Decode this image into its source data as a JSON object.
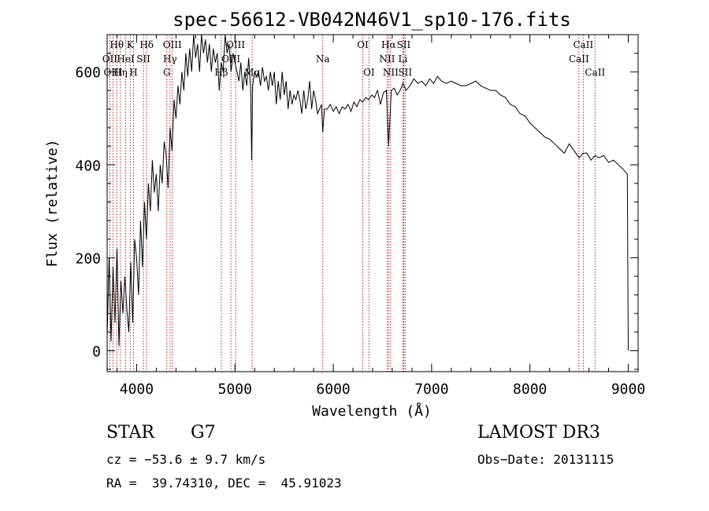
{
  "chart_data": {
    "type": "line",
    "title": "spec-56612-VB042N46V1_sp10-176.fits",
    "xlabel": "Wavelength (Å)",
    "ylabel": "Flux (relative)",
    "xlim": [
      3700,
      9100
    ],
    "ylim": [
      -45,
      680
    ],
    "xticks": [
      4000,
      5000,
      6000,
      7000,
      8000,
      9000
    ],
    "yticks": [
      0,
      200,
      400,
      600
    ],
    "grid": false,
    "line_color": "#000000",
    "marker_color": "#b22222",
    "spectrum": {
      "x": [
        3700,
        3720,
        3740,
        3760,
        3780,
        3800,
        3820,
        3840,
        3860,
        3880,
        3900,
        3920,
        3940,
        3960,
        3980,
        4000,
        4020,
        4040,
        4060,
        4080,
        4100,
        4120,
        4140,
        4160,
        4180,
        4200,
        4220,
        4240,
        4260,
        4280,
        4300,
        4320,
        4340,
        4360,
        4380,
        4400,
        4420,
        4440,
        4460,
        4480,
        4500,
        4520,
        4540,
        4560,
        4580,
        4600,
        4620,
        4640,
        4660,
        4680,
        4700,
        4720,
        4740,
        4760,
        4780,
        4800,
        4820,
        4840,
        4860,
        4880,
        4900,
        4920,
        4940,
        4960,
        4980,
        5000,
        5020,
        5040,
        5060,
        5080,
        5100,
        5120,
        5140,
        5160,
        5170,
        5180,
        5200,
        5220,
        5240,
        5260,
        5280,
        5300,
        5320,
        5340,
        5360,
        5380,
        5400,
        5420,
        5440,
        5460,
        5480,
        5500,
        5520,
        5540,
        5560,
        5580,
        5600,
        5620,
        5640,
        5660,
        5680,
        5700,
        5720,
        5740,
        5760,
        5780,
        5800,
        5820,
        5840,
        5860,
        5880,
        5893,
        5910,
        5940,
        5970,
        6000,
        6030,
        6060,
        6090,
        6120,
        6150,
        6180,
        6210,
        6240,
        6270,
        6300,
        6330,
        6360,
        6390,
        6420,
        6450,
        6480,
        6510,
        6540,
        6563,
        6590,
        6620,
        6650,
        6680,
        6710,
        6740,
        6780,
        6820,
        6860,
        6900,
        6940,
        6980,
        7020,
        7060,
        7100,
        7150,
        7200,
        7250,
        7300,
        7350,
        7400,
        7450,
        7500,
        7550,
        7600,
        7650,
        7700,
        7750,
        7800,
        7850,
        7900,
        7950,
        8000,
        8050,
        8100,
        8150,
        8200,
        8250,
        8300,
        8350,
        8400,
        8450,
        8500,
        8542,
        8580,
        8620,
        8662,
        8700,
        8750,
        8800,
        8850,
        8900,
        8950,
        8990,
        9000
      ],
      "y": [
        30,
        200,
        20,
        180,
        60,
        220,
        10,
        150,
        80,
        160,
        90,
        40,
        190,
        60,
        240,
        200,
        120,
        280,
        180,
        320,
        240,
        360,
        300,
        410,
        340,
        380,
        300,
        400,
        360,
        450,
        420,
        350,
        480,
        430,
        540,
        500,
        570,
        530,
        600,
        560,
        640,
        590,
        650,
        600,
        680,
        630,
        660,
        600,
        680,
        640,
        670,
        620,
        660,
        600,
        650,
        620,
        640,
        560,
        620,
        600,
        680,
        640,
        660,
        600,
        640,
        620,
        600,
        580,
        620,
        560,
        600,
        570,
        630,
        560,
        410,
        570,
        600,
        590,
        600,
        570,
        610,
        580,
        590,
        560,
        600,
        570,
        600,
        530,
        580,
        540,
        600,
        550,
        580,
        520,
        560,
        530,
        550,
        540,
        560,
        540,
        510,
        560,
        520,
        540,
        580,
        520,
        560,
        540,
        510,
        520,
        530,
        470,
        520,
        520,
        530,
        515,
        525,
        510,
        525,
        520,
        530,
        515,
        535,
        525,
        540,
        535,
        545,
        540,
        550,
        545,
        560,
        530,
        555,
        560,
        440,
        560,
        565,
        550,
        560,
        575,
        560,
        570,
        585,
        575,
        580,
        570,
        585,
        575,
        590,
        580,
        575,
        580,
        575,
        570,
        570,
        575,
        580,
        570,
        565,
        560,
        560,
        550,
        545,
        530,
        525,
        510,
        505,
        490,
        480,
        470,
        460,
        455,
        445,
        435,
        425,
        445,
        430,
        415,
        425,
        425,
        410,
        420,
        415,
        420,
        405,
        410,
        400,
        390,
        380,
        0
      ]
    },
    "lines": [
      {
        "label": "Hθ",
        "x": 3798,
        "row": 0
      },
      {
        "label": "OII",
        "x": 3727,
        "row": 1
      },
      {
        "label": "OIII",
        "x": 3760,
        "row": 2
      },
      {
        "label": "K",
        "x": 3934,
        "row": 0
      },
      {
        "label": "HeI",
        "x": 3889,
        "row": 1
      },
      {
        "label": "Hη",
        "x": 3835,
        "row": 2
      },
      {
        "label": "Hδ",
        "x": 4102,
        "row": 0
      },
      {
        "label": "SII",
        "x": 4069,
        "row": 1
      },
      {
        "label": "H",
        "x": 3968,
        "row": 2
      },
      {
        "label": "OIII",
        "x": 4363,
        "row": 0
      },
      {
        "label": "Hγ",
        "x": 4340,
        "row": 1
      },
      {
        "label": "G",
        "x": 4307,
        "row": 2
      },
      {
        "label": "OIII",
        "x": 5007,
        "row": 0
      },
      {
        "label": "OIII",
        "x": 4959,
        "row": 1
      },
      {
        "label": "Hβ",
        "x": 4861,
        "row": 2
      },
      {
        "label": "Mg",
        "x": 5175,
        "row": 2
      },
      {
        "label": "Na",
        "x": 5893,
        "row": 1
      },
      {
        "label": "OI",
        "x": 6300,
        "row": 0
      },
      {
        "label": "OI",
        "x": 6363,
        "row": 2
      },
      {
        "label": "Hα",
        "x": 6563,
        "row": 0
      },
      {
        "label": "SII",
        "x": 6716,
        "row": 0
      },
      {
        "label": "NII",
        "x": 6548,
        "row": 1
      },
      {
        "label": "Li",
        "x": 6708,
        "row": 1
      },
      {
        "label": "NII",
        "x": 6583,
        "row": 2
      },
      {
        "label": "SII",
        "x": 6731,
        "row": 2
      },
      {
        "label": "CaII",
        "x": 8542,
        "row": 0
      },
      {
        "label": "CaII",
        "x": 8498,
        "row": 1
      },
      {
        "label": "CaII",
        "x": 8662,
        "row": 2
      }
    ]
  },
  "info": {
    "object_class": "STAR",
    "subclass": "G7",
    "survey": "LAMOST DR3",
    "cz": "cz = −53.6 ± 9.7 km/s",
    "obs_date": "Obs−Date: 20131115",
    "coords": "RA =  39.74310, DEC =  45.91023"
  }
}
